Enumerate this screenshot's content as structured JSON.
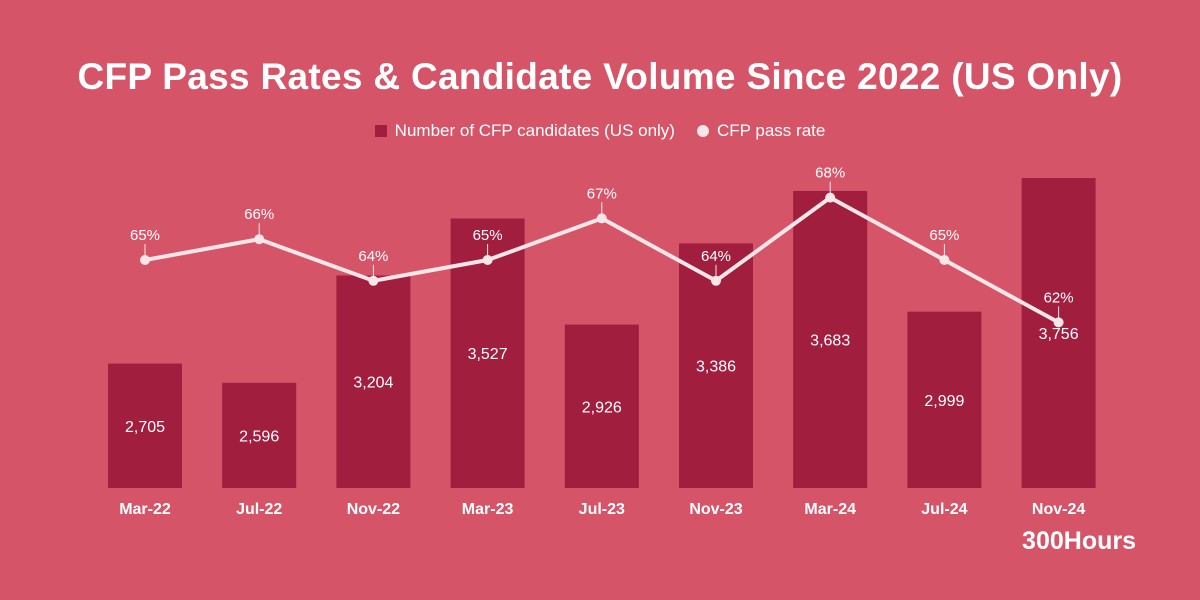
{
  "chart_data": {
    "type": "bar+line",
    "title": "CFP Pass Rates & Candidate Volume Since 2022 (US Only)",
    "categories": [
      "Mar-22",
      "Jul-22",
      "Nov-22",
      "Mar-23",
      "Jul-23",
      "Nov-23",
      "Mar-24",
      "Jul-24",
      "Nov-24"
    ],
    "series": [
      {
        "name": "Number of CFP candidates (US only)",
        "type": "bar",
        "values": [
          2705,
          2596,
          3204,
          3527,
          2926,
          3386,
          3683,
          2999,
          3756
        ],
        "labels": [
          "2,705",
          "2,596",
          "3,204",
          "3,527",
          "2,926",
          "3,386",
          "3,683",
          "2,999",
          "3,756"
        ],
        "color": "#a11e3e"
      },
      {
        "name": "CFP pass rate",
        "type": "line",
        "values": [
          65,
          66,
          64,
          65,
          67,
          64,
          68,
          65,
          62
        ],
        "labels": [
          "65%",
          "66%",
          "64%",
          "65%",
          "67%",
          "64%",
          "68%",
          "65%",
          "62%"
        ],
        "color": "#f8e6e9"
      }
    ],
    "bar_ylim": [
      2000,
      4000
    ],
    "grid": false,
    "legend": "top"
  },
  "background": "#d65468",
  "brand": "300Hours"
}
